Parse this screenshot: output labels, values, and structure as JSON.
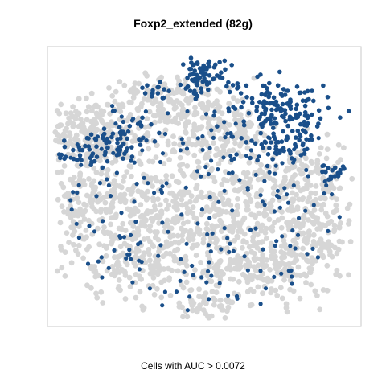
{
  "chart_data": {
    "type": "scatter",
    "title": "Foxp2_extended (82g)",
    "caption": "Cells with AUC > 0.0072",
    "colors": {
      "positive": "#1a4f8a",
      "negative": "#d6d6d6",
      "frame": "#c8c8c8"
    },
    "series": [
      {
        "name": "",
        "color": "#d6d6d6"
      },
      {
        "name": "",
        "color": "#1a4f8a"
      }
    ]
  }
}
